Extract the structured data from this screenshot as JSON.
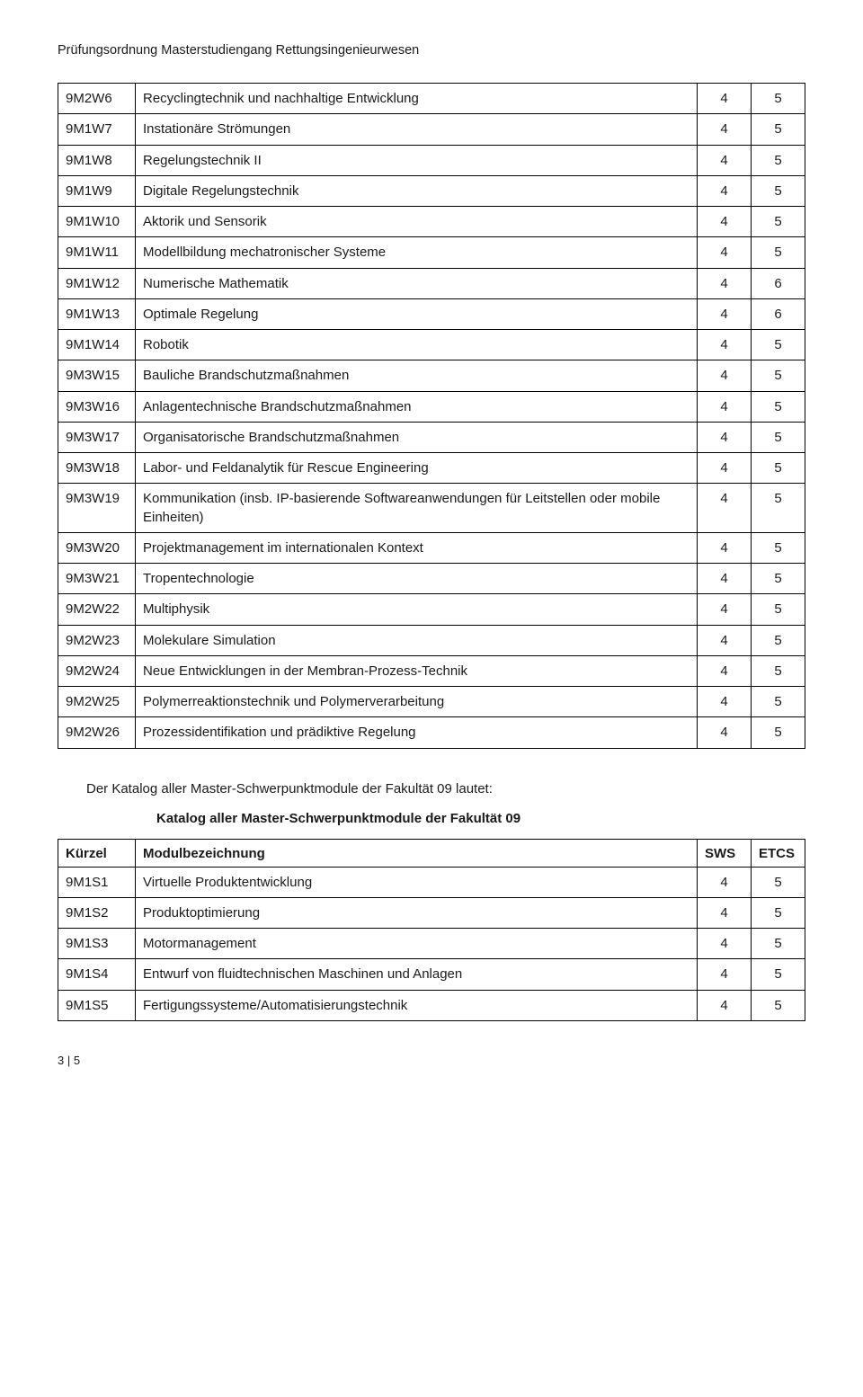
{
  "header": "Prüfungsordnung Masterstudiengang Rettungsingenieurwesen",
  "table1_rows": [
    {
      "code": "9M2W6",
      "name": "Recyclingtechnik und nachhaltige Entwicklung",
      "sws": "4",
      "ects": "5"
    },
    {
      "code": "9M1W7",
      "name": "Instationäre Strömungen",
      "sws": "4",
      "ects": "5"
    },
    {
      "code": "9M1W8",
      "name": "Regelungstechnik II",
      "sws": "4",
      "ects": "5"
    },
    {
      "code": "9M1W9",
      "name": "Digitale Regelungstechnik",
      "sws": "4",
      "ects": "5"
    },
    {
      "code": "9M1W10",
      "name": "Aktorik und Sensorik",
      "sws": "4",
      "ects": "5"
    },
    {
      "code": "9M1W11",
      "name": "Modellbildung mechatronischer Systeme",
      "sws": "4",
      "ects": "5"
    },
    {
      "code": "9M1W12",
      "name": "Numerische Mathematik",
      "sws": "4",
      "ects": "6"
    },
    {
      "code": "9M1W13",
      "name": "Optimale Regelung",
      "sws": "4",
      "ects": "6"
    },
    {
      "code": "9M1W14",
      "name": "Robotik",
      "sws": "4",
      "ects": "5"
    },
    {
      "code": "9M3W15",
      "name": "Bauliche Brandschutzmaßnahmen",
      "sws": "4",
      "ects": "5"
    },
    {
      "code": "9M3W16",
      "name": "Anlagentechnische Brandschutzmaßnahmen",
      "sws": "4",
      "ects": "5"
    },
    {
      "code": "9M3W17",
      "name": "Organisatorische Brandschutzmaßnahmen",
      "sws": "4",
      "ects": "5"
    },
    {
      "code": "9M3W18",
      "name": "Labor- und Feldanalytik für Rescue Engineering",
      "sws": "4",
      "ects": "5"
    },
    {
      "code": "9M3W19",
      "name": "Kommunikation (insb. IP-basierende Softwareanwendungen für Leitstellen oder mobile Einheiten)",
      "sws": "4",
      "ects": "5"
    },
    {
      "code": "9M3W20",
      "name": "Projektmanagement im internationalen Kontext",
      "sws": "4",
      "ects": "5"
    },
    {
      "code": "9M3W21",
      "name": "Tropentechnologie",
      "sws": "4",
      "ects": "5"
    },
    {
      "code": "9M2W22",
      "name": "Multiphysik",
      "sws": "4",
      "ects": "5"
    },
    {
      "code": "9M2W23",
      "name": "Molekulare Simulation",
      "sws": "4",
      "ects": "5"
    },
    {
      "code": "9M2W24",
      "name": "Neue Entwicklungen in der Membran-Prozess-Technik",
      "sws": "4",
      "ects": "5"
    },
    {
      "code": "9M2W25",
      "name": "Polymerreaktionstechnik und Polymerverarbeitung",
      "sws": "4",
      "ects": "5"
    },
    {
      "code": "9M2W26",
      "name": "Prozessidentifikation und  prädiktive Regelung",
      "sws": "4",
      "ects": "5"
    }
  ],
  "intro_text": "Der Katalog aller Master-Schwerpunktmodule der Fakultät 09 lautet:",
  "katalog_title": "Katalog aller Master-Schwerpunktmodule der Fakultät 09",
  "table2_headers": {
    "c0": "Kürzel",
    "c1": "Modulbezeichnung",
    "c2": "SWS",
    "c3": "ETCS"
  },
  "table2_rows": [
    {
      "code": "9M1S1",
      "name": "Virtuelle Produktentwicklung",
      "sws": "4",
      "ects": "5"
    },
    {
      "code": "9M1S2",
      "name": "Produktoptimierung",
      "sws": "4",
      "ects": "5"
    },
    {
      "code": "9M1S3",
      "name": "Motormanagement",
      "sws": "4",
      "ects": "5"
    },
    {
      "code": "9M1S4",
      "name": "Entwurf von fluidtechnischen Maschinen und Anlagen",
      "sws": "4",
      "ects": "5"
    },
    {
      "code": "9M1S5",
      "name": "Fertigungssysteme/Automatisierungstechnik",
      "sws": "4",
      "ects": "5"
    }
  ],
  "footer": "3 | 5"
}
